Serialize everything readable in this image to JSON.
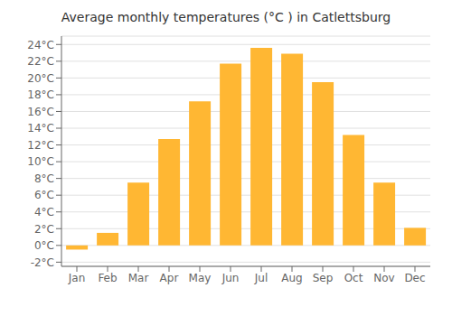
{
  "chart_data": {
    "type": "bar",
    "title": "Average monthly temperatures (°C ) in Catlettsburg",
    "categories": [
      "Jan",
      "Feb",
      "Mar",
      "Apr",
      "May",
      "Jun",
      "Jul",
      "Aug",
      "Sep",
      "Oct",
      "Nov",
      "Dec"
    ],
    "values": [
      -0.5,
      1.5,
      7.5,
      12.7,
      17.2,
      21.7,
      23.6,
      22.9,
      19.5,
      13.2,
      7.5,
      2.1
    ],
    "color": "#FFB733",
    "ylim": [
      -2.5,
      25
    ],
    "yticks": [
      {
        "value": -2,
        "label": "-2°C"
      },
      {
        "value": 0,
        "label": "0°C"
      },
      {
        "value": 2,
        "label": "2°C"
      },
      {
        "value": 4,
        "label": "4°C"
      },
      {
        "value": 6,
        "label": "6°C"
      },
      {
        "value": 8,
        "label": "8°C"
      },
      {
        "value": 10,
        "label": "10°C"
      },
      {
        "value": 12,
        "label": "12°C"
      },
      {
        "value": 14,
        "label": "14°C"
      },
      {
        "value": 16,
        "label": "16°C"
      },
      {
        "value": 18,
        "label": "18°C"
      },
      {
        "value": 20,
        "label": "20°C"
      },
      {
        "value": 22,
        "label": "22°C"
      },
      {
        "value": 24,
        "label": "24°C"
      }
    ],
    "grid": true
  }
}
